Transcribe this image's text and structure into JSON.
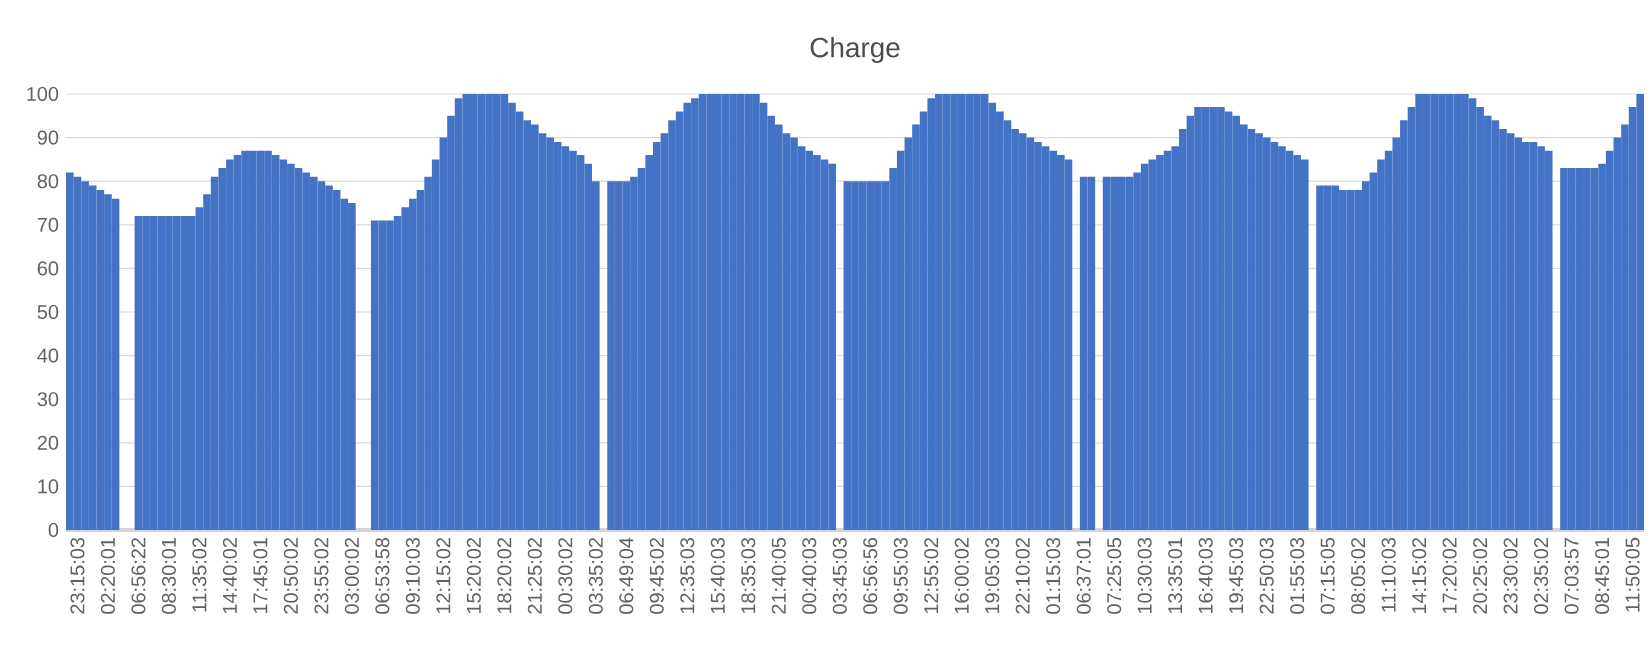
{
  "chart_data": {
    "type": "bar",
    "title": "Charge",
    "color": "#4472c4",
    "categories": [
      null,
      "23:15:03",
      null,
      null,
      null,
      "02:20:01",
      null,
      null,
      null,
      "06:56:22",
      null,
      null,
      null,
      "08:30:01",
      null,
      null,
      null,
      "11:35:02",
      null,
      null,
      null,
      "14:40:02",
      null,
      null,
      null,
      "17:45:01",
      null,
      null,
      null,
      "20:50:02",
      null,
      null,
      null,
      "23:55:02",
      null,
      null,
      null,
      "03:00:02",
      null,
      null,
      null,
      "06:53:58",
      null,
      null,
      null,
      "09:10:03",
      null,
      null,
      null,
      "12:15:02",
      null,
      null,
      null,
      "15:20:02",
      null,
      null,
      null,
      "18:20:02",
      null,
      null,
      null,
      "21:25:02",
      null,
      null,
      null,
      "00:30:02",
      null,
      null,
      null,
      "03:35:02",
      null,
      null,
      null,
      "06:49:04",
      null,
      null,
      null,
      "09:45:02",
      null,
      null,
      null,
      "12:35:03",
      null,
      null,
      null,
      "15:40:03",
      null,
      null,
      null,
      "18:35:03",
      null,
      null,
      null,
      "21:40:05",
      null,
      null,
      null,
      "00:40:03",
      null,
      null,
      null,
      "03:45:03",
      null,
      null,
      null,
      "06:56:56",
      null,
      null,
      null,
      "09:55:03",
      null,
      null,
      null,
      "12:55:02",
      null,
      null,
      null,
      "16:00:02",
      null,
      null,
      null,
      "19:05:03",
      null,
      null,
      null,
      "22:10:02",
      null,
      null,
      null,
      "01:15:03",
      null,
      null,
      null,
      "06:37:01",
      null,
      null,
      null,
      "07:25:05",
      null,
      null,
      null,
      "10:30:03",
      null,
      null,
      null,
      "13:35:01",
      null,
      null,
      null,
      "16:40:03",
      null,
      null,
      null,
      "19:45:03",
      null,
      null,
      null,
      "22:50:03",
      null,
      null,
      null,
      "01:55:03",
      null,
      null,
      null,
      "07:15:05",
      null,
      null,
      null,
      "08:05:02",
      null,
      null,
      null,
      "11:10:03",
      null,
      null,
      null,
      "14:15:02",
      null,
      null,
      null,
      "17:20:02",
      null,
      null,
      null,
      "20:25:02",
      null,
      null,
      null,
      "23:30:02",
      null,
      null,
      null,
      "02:35:02",
      null,
      null,
      null,
      "07:03:57",
      null,
      null,
      null,
      "08:45:01",
      null,
      null,
      null,
      "11:50:05",
      null
    ],
    "values": [
      82,
      81,
      80,
      79,
      78,
      77,
      76,
      null,
      null,
      72,
      72,
      72,
      72,
      72,
      72,
      72,
      72,
      74,
      77,
      81,
      83,
      85,
      86,
      87,
      87,
      87,
      87,
      86,
      85,
      84,
      83,
      82,
      81,
      80,
      79,
      78,
      76,
      75,
      null,
      null,
      71,
      71,
      71,
      72,
      74,
      76,
      78,
      81,
      85,
      90,
      95,
      99,
      100,
      100,
      100,
      100,
      100,
      100,
      98,
      96,
      94,
      93,
      91,
      90,
      89,
      88,
      87,
      86,
      84,
      80,
      null,
      80,
      80,
      80,
      81,
      83,
      86,
      89,
      91,
      94,
      96,
      98,
      99,
      100,
      100,
      100,
      100,
      100,
      100,
      100,
      100,
      98,
      95,
      93,
      91,
      90,
      88,
      87,
      86,
      85,
      84,
      null,
      80,
      80,
      80,
      80,
      80,
      80,
      83,
      87,
      90,
      93,
      96,
      99,
      100,
      100,
      100,
      100,
      100,
      100,
      100,
      98,
      96,
      94,
      92,
      91,
      90,
      89,
      88,
      87,
      86,
      85,
      null,
      81,
      81,
      null,
      81,
      81,
      81,
      81,
      82,
      84,
      85,
      86,
      87,
      88,
      92,
      95,
      97,
      97,
      97,
      97,
      96,
      95,
      93,
      92,
      91,
      90,
      89,
      88,
      87,
      86,
      85,
      null,
      79,
      79,
      79,
      78,
      78,
      78,
      80,
      82,
      85,
      87,
      90,
      94,
      97,
      100,
      100,
      100,
      100,
      100,
      100,
      100,
      99,
      97,
      95,
      94,
      92,
      91,
      90,
      89,
      89,
      88,
      87,
      null,
      83,
      83,
      83,
      83,
      83,
      84,
      87,
      90,
      93,
      97,
      100
    ],
    "ylim": [
      0,
      100
    ],
    "yticks": [
      0,
      10,
      20,
      30,
      40,
      50,
      60,
      70,
      80,
      90,
      100
    ],
    "grid": "y"
  }
}
